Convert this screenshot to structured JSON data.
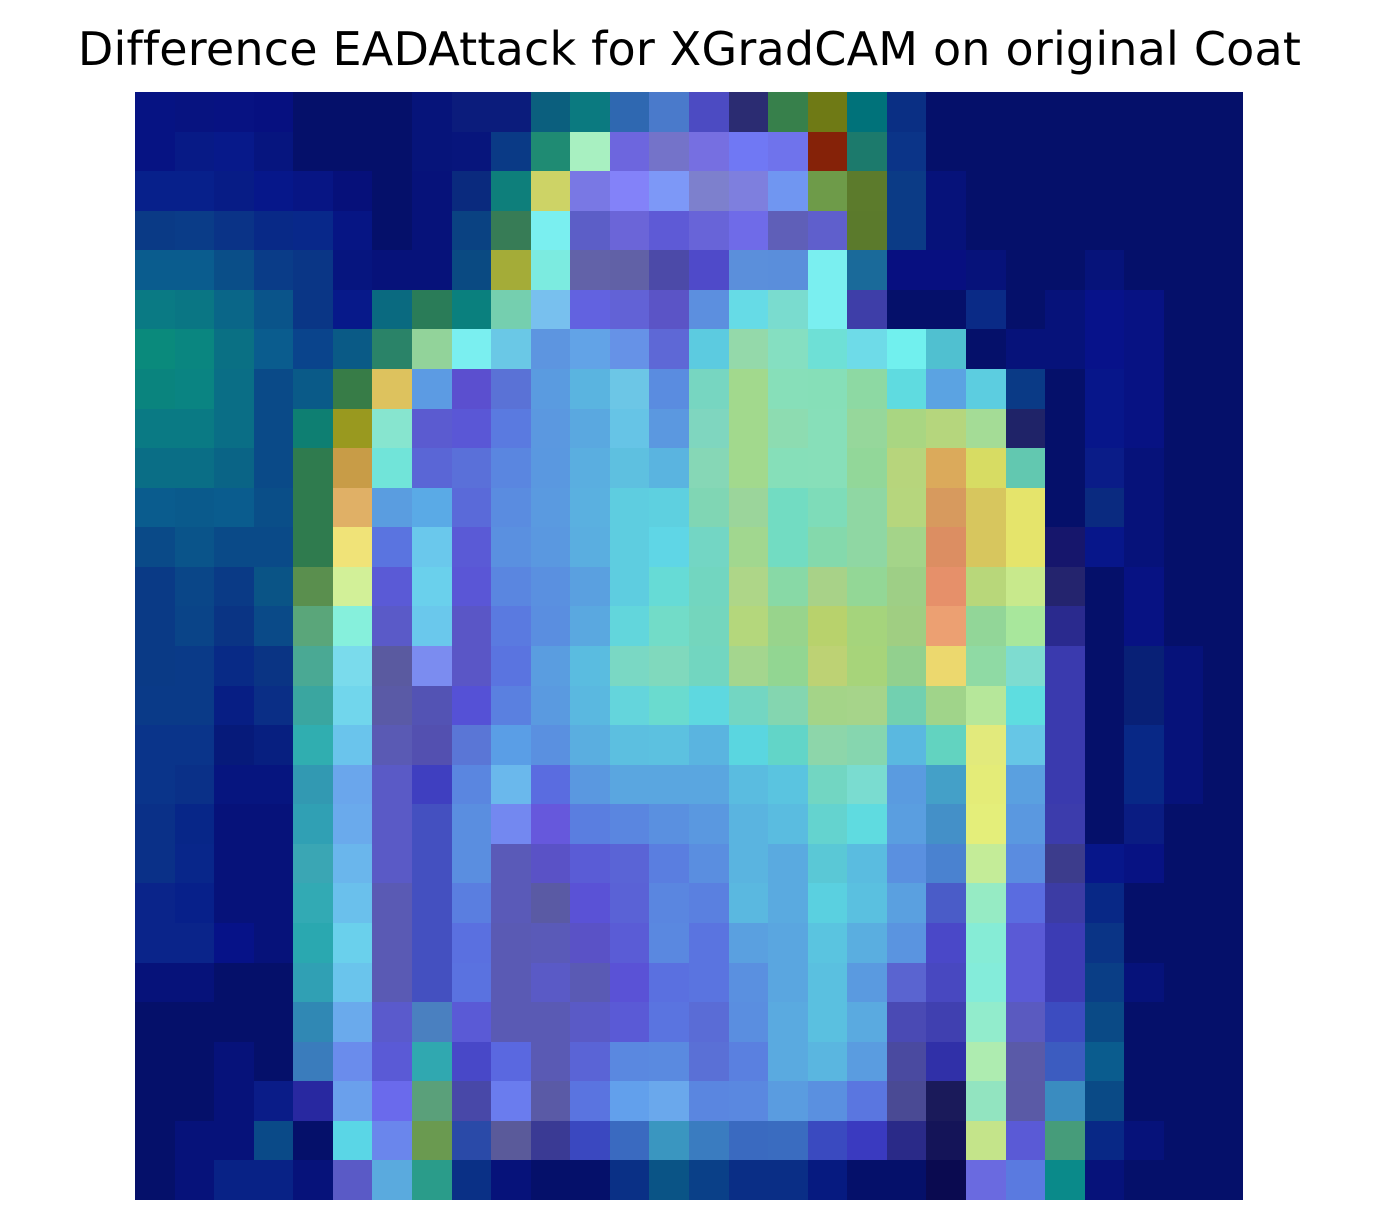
{
  "title": "Difference EADAttack for XGradCAM on original Coat",
  "heatmap": {
    "rows": 28,
    "cols": 28,
    "colormap_stops": [
      "#05106a",
      "#0b2c8a",
      "#0a5c8e",
      "#1f8b8b",
      "#4fb6a7",
      "#7ad2c3",
      "#9bd8a6",
      "#c7e08a",
      "#e8c066",
      "#e39a5a",
      "#8c2a12"
    ],
    "colors": [
      [
        "#061383",
        "#071380",
        "#071282",
        "#061080",
        "#05106a",
        "#05106a",
        "#05106a",
        "#06147a",
        "#0b1c7c",
        "#0b1c7c",
        "#0b5f7e",
        "#0b7a80",
        "#2f68b1",
        "#4a7acb",
        "#4c4bc2",
        "#2b2c72",
        "#37804b",
        "#6f7a15",
        "#00727a",
        "#0a2f84",
        "#05106a",
        "#05106a",
        "#05106a",
        "#05106a",
        "#05106a",
        "#05106a",
        "#05106a",
        "#05106a"
      ],
      [
        "#061383",
        "#071a86",
        "#07198a",
        "#06157f",
        "#05106a",
        "#05106a",
        "#05106a",
        "#06147a",
        "#07157c",
        "#0a3a86",
        "#1f8b73",
        "#a8f0c1",
        "#6d66de",
        "#7473c9",
        "#766fe1",
        "#7078f4",
        "#6f73ec",
        "#852208",
        "#1c7a6c",
        "#0b3488",
        "#05106a",
        "#05106a",
        "#05106a",
        "#05106a",
        "#05106a",
        "#05106a",
        "#05106a",
        "#05106a"
      ],
      [
        "#07208b",
        "#07208b",
        "#071c86",
        "#06178a",
        "#071584",
        "#06107a",
        "#05106a",
        "#06127a",
        "#0a2a7e",
        "#0e7f7b",
        "#cdd366",
        "#7978e4",
        "#8382f9",
        "#7d98f7",
        "#7d80cd",
        "#7e7fde",
        "#7096f1",
        "#6e9b49",
        "#5c7b2c",
        "#0b3b86",
        "#06127a",
        "#05106a",
        "#05106a",
        "#05106a",
        "#05106a",
        "#05106a",
        "#05106a",
        "#05106a"
      ],
      [
        "#0a3a86",
        "#0a3c88",
        "#0a3387",
        "#082987",
        "#08288a",
        "#061584",
        "#05106a",
        "#06127a",
        "#0a4282",
        "#377c56",
        "#7aeff0",
        "#5c5ec7",
        "#6b65d8",
        "#5e5ad6",
        "#6864d8",
        "#6f6be8",
        "#5f5fb8",
        "#5f5fcc",
        "#5b7a2c",
        "#0b3b86",
        "#06127a",
        "#05106a",
        "#05106a",
        "#05106a",
        "#05106a",
        "#05106a",
        "#05106a",
        "#05106a"
      ],
      [
        "#0a5c8e",
        "#0a5c8e",
        "#0a4e88",
        "#0a3c88",
        "#0a3686",
        "#06157f",
        "#06127a",
        "#06127a",
        "#0a4a82",
        "#a4ac38",
        "#7cebe0",
        "#6262a8",
        "#6161a6",
        "#4c4aa8",
        "#4f4ac9",
        "#5b8fdb",
        "#5a8edb",
        "#7aeff0",
        "#1a6a9a",
        "#070f80",
        "#070f80",
        "#06127a",
        "#05106a",
        "#05106a",
        "#06137a",
        "#05106a",
        "#05106a",
        "#05106a"
      ],
      [
        "#0a7a84",
        "#0a7684",
        "#0a6688",
        "#0a548a",
        "#0a3686",
        "#07198a",
        "#0a6a80",
        "#2a7c58",
        "#0a807e",
        "#75cfaf",
        "#78c0ee",
        "#6262e0",
        "#6262d6",
        "#5b54c6",
        "#5c8fdf",
        "#66dbe6",
        "#7adccf",
        "#7aeff0",
        "#3e3ea8",
        "#05106a",
        "#05106a",
        "#0a2a86",
        "#05106a",
        "#06127a",
        "#07128a",
        "#071283",
        "#05106a",
        "#05106a"
      ],
      [
        "#0a8a7c",
        "#0a8680",
        "#0a7084",
        "#0a5c8e",
        "#0a448c",
        "#0a5a86",
        "#2a8368",
        "#92d39a",
        "#7aeff0",
        "#6ac8e6",
        "#5d95e0",
        "#62a3e7",
        "#6692e7",
        "#5e68d6",
        "#5ccbe0",
        "#94d9aa",
        "#85dfc1",
        "#6ee0d6",
        "#6edbe8",
        "#71f0ee",
        "#50c0d0",
        "#05106a",
        "#06127a",
        "#06127a",
        "#07128a",
        "#071283",
        "#05106a",
        "#05106a"
      ],
      [
        "#0a847e",
        "#0a8482",
        "#0a6e86",
        "#0a4a88",
        "#0a5a88",
        "#377c47",
        "#ddc25e",
        "#5c9be3",
        "#5b4fcf",
        "#5a72d6",
        "#5a9be0",
        "#5ab4e0",
        "#6cc6e6",
        "#5a8ce0",
        "#77d6c1",
        "#a2d98d",
        "#87dfb9",
        "#86dfb8",
        "#8dd9a3",
        "#5fdbe0",
        "#5ba3e2",
        "#5ccde0",
        "#0a3a86",
        "#05106a",
        "#07168a",
        "#071283",
        "#05106a",
        "#05106a"
      ],
      [
        "#0a7a84",
        "#0a7a84",
        "#0a6e86",
        "#0a4a88",
        "#0e7f72",
        "#99991f",
        "#87e5cf",
        "#5b5bd0",
        "#5a57d6",
        "#5a7ae0",
        "#5b98e0",
        "#5aa8e0",
        "#66c4e6",
        "#5b98e0",
        "#7fd6bf",
        "#a2d98d",
        "#8ddcb1",
        "#87dfb9",
        "#96d79b",
        "#a9d682",
        "#b5d67d",
        "#a4dc96",
        "#1f2368",
        "#05106a",
        "#07168a",
        "#071283",
        "#05106a",
        "#05106a"
      ],
      [
        "#0a6e86",
        "#0a6e86",
        "#0a6486",
        "#0a4a88",
        "#2f7b4e",
        "#c89c47",
        "#71e4d9",
        "#5a66d6",
        "#5a70d9",
        "#5a86e0",
        "#5a98e0",
        "#5aaee0",
        "#5ec0e0",
        "#5ab4e0",
        "#86d7b6",
        "#a2d98d",
        "#86dfb9",
        "#87dfb9",
        "#92d799",
        "#b7d57c",
        "#dbaa5b",
        "#d7dc63",
        "#62c8b0",
        "#05106a",
        "#0a1c88",
        "#06127a",
        "#05106a",
        "#05106a"
      ],
      [
        "#0a5c8e",
        "#0a5a8c",
        "#0a5c8e",
        "#0a4e88",
        "#2f7b4e",
        "#e0b066",
        "#5a9de0",
        "#5aaae6",
        "#5a6ad9",
        "#5a8ce0",
        "#5a9ae0",
        "#5ab0e0",
        "#5ecde0",
        "#5ed0e0",
        "#80d6b4",
        "#9bd59b",
        "#72dcc2",
        "#7edcb9",
        "#8fd7a3",
        "#b6d67d",
        "#d79a5e",
        "#d7c65e",
        "#e5e46b",
        "#05106a",
        "#0a2a80",
        "#06127a",
        "#05106a",
        "#05106a"
      ],
      [
        "#0a4a88",
        "#0a548a",
        "#0a4a88",
        "#0a4a88",
        "#2f7b4e",
        "#f0e378",
        "#5a74e0",
        "#6ac8ec",
        "#5a5ad6",
        "#5a90e0",
        "#5a98e0",
        "#5aaee0",
        "#5ecde0",
        "#5fd6e6",
        "#73d6c4",
        "#a1d78f",
        "#72dcc2",
        "#84d9ac",
        "#8fd7a3",
        "#a4d489",
        "#dc8e62",
        "#d7c65e",
        "#e5e46b",
        "#16166c",
        "#07168a",
        "#06127a",
        "#05106a",
        "#05106a"
      ],
      [
        "#0a3a86",
        "#0a4688",
        "#0a3a86",
        "#0a5486",
        "#5a8f4e",
        "#d2f098",
        "#5a5ad6",
        "#6ad0ec",
        "#5a56d6",
        "#5a86e0",
        "#5a90e0",
        "#5aa0e0",
        "#5ecde0",
        "#66dbd6",
        "#72d6c0",
        "#aed688",
        "#88d9a6",
        "#a8d288",
        "#93d796",
        "#9ecf86",
        "#e6906a",
        "#b8d77a",
        "#c8e98c",
        "#24246e",
        "#05106a",
        "#071283",
        "#05106a",
        "#05106a"
      ],
      [
        "#0a3a86",
        "#0a4488",
        "#0a3484",
        "#0a4a88",
        "#5aa67a",
        "#86f0dc",
        "#5a5ac8",
        "#6ac8ec",
        "#5a56c6",
        "#5a7ae0",
        "#5a8ee0",
        "#5aa8e0",
        "#62d6dc",
        "#72dcc8",
        "#74d6bd",
        "#b4d77c",
        "#98d48c",
        "#b8d26c",
        "#a5d47c",
        "#a0ce82",
        "#eca072",
        "#92d698",
        "#a8e79c",
        "#2a2a8e",
        "#05106a",
        "#071283",
        "#05106a",
        "#05106a"
      ],
      [
        "#0a3a86",
        "#0a3a88",
        "#082a86",
        "#0a3484",
        "#4aa994",
        "#7adbec",
        "#5a5aa0",
        "#7b8cf0",
        "#5a56c6",
        "#5a74e0",
        "#5a9de0",
        "#5abce0",
        "#7ad8c4",
        "#80d9bd",
        "#72d6c0",
        "#a4d68e",
        "#92d692",
        "#bdd274",
        "#a7d47a",
        "#92d08e",
        "#ecd86e",
        "#8fdaa4",
        "#7edcd0",
        "#3a3aae",
        "#05106a",
        "#082076",
        "#06127a",
        "#05106a"
      ],
      [
        "#0a3a88",
        "#0a3a88",
        "#071e84",
        "#0a2e86",
        "#3aa6a0",
        "#71d6ec",
        "#5a5aa6",
        "#5353b4",
        "#5551d6",
        "#5a80e0",
        "#5a9ae0",
        "#5ab8e0",
        "#64d5dc",
        "#6adbcf",
        "#5ed8e0",
        "#73d6c2",
        "#84d6b0",
        "#a4d488",
        "#a6d48a",
        "#72d0b0",
        "#a0d48a",
        "#b6e79a",
        "#5edde0",
        "#3a3aae",
        "#05106a",
        "#082076",
        "#06127a",
        "#05106a"
      ],
      [
        "#0a348a",
        "#0a348a",
        "#061a7a",
        "#071f80",
        "#30aeb0",
        "#6ac4ec",
        "#5a5ab4",
        "#5350b0",
        "#5a76d6",
        "#5a9ee6",
        "#5a90e0",
        "#5aaee0",
        "#5cbfe0",
        "#5cc1e0",
        "#5ab4e0",
        "#5ad6e0",
        "#62d5c8",
        "#8dd6aa",
        "#86d6af",
        "#5ab8e0",
        "#62d3c0",
        "#e2ea7c",
        "#66c6e6",
        "#3a3aae",
        "#05106a",
        "#082886",
        "#06127a",
        "#05106a"
      ],
      [
        "#0a348a",
        "#0a3088",
        "#06157f",
        "#06157f",
        "#3299b2",
        "#6aa6ec",
        "#5a5ac6",
        "#3f3fc0",
        "#5a86e0",
        "#6ab8ec",
        "#5a6ce0",
        "#5a98e0",
        "#5aa6e0",
        "#5aa6e0",
        "#5aa6e0",
        "#5abce0",
        "#5ac4e0",
        "#72d6c2",
        "#7adcd0",
        "#5a9be0",
        "#44a0c8",
        "#e4ec78",
        "#5aa0e0",
        "#3a3aae",
        "#05106a",
        "#082886",
        "#06127a",
        "#05106a"
      ],
      [
        "#0a3088",
        "#072688",
        "#06127a",
        "#06127a",
        "#30a0b4",
        "#6aaaec",
        "#5a5ac6",
        "#4450c0",
        "#5a8ee0",
        "#7388f0",
        "#6658dc",
        "#5a7ee0",
        "#5a86e0",
        "#5a90e0",
        "#5a98e0",
        "#5ab4e0",
        "#5abce0",
        "#64d3cf",
        "#5fdbe0",
        "#5a9ee0",
        "#4490c8",
        "#e4ee7a",
        "#5a98e0",
        "#3c3cac",
        "#05106a",
        "#0a1c82",
        "#05106a",
        "#05106a"
      ],
      [
        "#0a3088",
        "#08268a",
        "#06127a",
        "#06127a",
        "#3aa6b4",
        "#6ab6ec",
        "#5a5ac6",
        "#4450c0",
        "#5a8ee0",
        "#5a5ab8",
        "#5a52c6",
        "#5a5cd6",
        "#5a64d6",
        "#5a7ee0",
        "#5a8ee0",
        "#5ab4e0",
        "#5aaae0",
        "#5ac8d6",
        "#5abce0",
        "#5a90e0",
        "#4a82d0",
        "#c4ec98",
        "#5a8ce0",
        "#3c3c8c",
        "#07168a",
        "#071283",
        "#05106a",
        "#05106a"
      ],
      [
        "#0a248a",
        "#07208a",
        "#06127a",
        "#06127a",
        "#32aab4",
        "#6ac0ec",
        "#5a5ab4",
        "#4450c0",
        "#5a7ee0",
        "#5a5ab8",
        "#5a5aa4",
        "#5a52d6",
        "#5a62d6",
        "#5a86e0",
        "#5a80e0",
        "#5ab8e0",
        "#5aaae0",
        "#5ad0e0",
        "#5ac0e0",
        "#5aa0e0",
        "#4a5cc8",
        "#96ebc4",
        "#5a6ce0",
        "#3c3ca4",
        "#082886",
        "#05106a",
        "#05106a",
        "#05106a"
      ],
      [
        "#0a248a",
        "#0a248a",
        "#061288",
        "#06127a",
        "#2aa8b0",
        "#6ad0ec",
        "#5a5ab4",
        "#4450c0",
        "#5a70e0",
        "#5a5ab4",
        "#5a5ab8",
        "#5a52c6",
        "#5a5cd6",
        "#5a88e0",
        "#5a74e0",
        "#5aa0e0",
        "#5aa6e0",
        "#5ac4e0",
        "#5aaee0",
        "#5a94e0",
        "#4a48c8",
        "#86ecd6",
        "#5a5ad6",
        "#3c3cb4",
        "#0a3486",
        "#05106a",
        "#05106a",
        "#05106a"
      ],
      [
        "#06127a",
        "#06127a",
        "#05106a",
        "#05106a",
        "#30a0b4",
        "#6ac4ec",
        "#5a5ab4",
        "#4450c0",
        "#5a72e0",
        "#5a5ab4",
        "#5a5ac6",
        "#5a5ab4",
        "#5a52d6",
        "#5a70e0",
        "#5a74e0",
        "#5a90e0",
        "#5aa6e0",
        "#5ac0e0",
        "#5a9ae0",
        "#5a64d0",
        "#4848c0",
        "#84ecda",
        "#5a5ad6",
        "#3c3cb4",
        "#0a3e86",
        "#06127a",
        "#05106a",
        "#05106a"
      ],
      [
        "#05106a",
        "#05106a",
        "#05106a",
        "#05106a",
        "#3088b4",
        "#6aaaec",
        "#5a5acc",
        "#4a80c0",
        "#5a5ad6",
        "#5a5ab4",
        "#5a5ab4",
        "#5a5ac6",
        "#5a5ad6",
        "#5a74e0",
        "#5a6cd6",
        "#5a8ee0",
        "#5aaae0",
        "#5ac0e0",
        "#5aaae0",
        "#4a4ab4",
        "#4040b0",
        "#92eccc",
        "#5a5ac0",
        "#3c4cc0",
        "#0a4a86",
        "#05106a",
        "#05106a",
        "#05106a"
      ],
      [
        "#05106a",
        "#05106a",
        "#06127a",
        "#05106a",
        "#3a7cbc",
        "#6a8cec",
        "#5a5ad6",
        "#30a8b0",
        "#4848c8",
        "#5a68e0",
        "#5a5ab4",
        "#5a64d6",
        "#5a88e0",
        "#5a8ae0",
        "#5a70d6",
        "#5a80e0",
        "#5aaae0",
        "#5ab6e0",
        "#5a9ce0",
        "#4a4aa0",
        "#3030a8",
        "#aeecb0",
        "#5a5aa8",
        "#3c5cc0",
        "#0a5c8e",
        "#05106a",
        "#05106a",
        "#05106a"
      ],
      [
        "#05106a",
        "#05106a",
        "#06127a",
        "#0a1c88",
        "#2828a0",
        "#6aa0ec",
        "#6a6aec",
        "#5aa07a",
        "#4848a8",
        "#6a7cee",
        "#5a5aa6",
        "#5a74e0",
        "#62a0ec",
        "#6aa8ec",
        "#5a86e0",
        "#5a88e0",
        "#5a9ce0",
        "#5a90e0",
        "#5a76e0",
        "#4a4a94",
        "#1a1a5a",
        "#92e4c0",
        "#5a5aa6",
        "#3a8cc0",
        "#0a4a86",
        "#05106a",
        "#05106a",
        "#05106a"
      ],
      [
        "#05106a",
        "#06127a",
        "#06127a",
        "#0a4a88",
        "#05106a",
        "#5ad6e6",
        "#6a86ec",
        "#6a9a50",
        "#2a4aa8",
        "#5a5a9a",
        "#3a3a94",
        "#3a48c0",
        "#3a6ac0",
        "#3a96c0",
        "#3a7cc0",
        "#3a6ac0",
        "#3a6cc0",
        "#3a4ac0",
        "#3a3ac0",
        "#2a2a88",
        "#141458",
        "#c4e48a",
        "#5a5ad6",
        "#469c7a",
        "#082886",
        "#06127a",
        "#05106a",
        "#05106a"
      ],
      [
        "#05106a",
        "#06127a",
        "#082286",
        "#082286",
        "#06127a",
        "#5a5ac6",
        "#5aaade",
        "#2a9c8a",
        "#0a3086",
        "#06127a",
        "#05106a",
        "#05106a",
        "#0a3086",
        "#0a5486",
        "#0a4088",
        "#0a2e86",
        "#0a2e86",
        "#061a80",
        "#05106a",
        "#05106a",
        "#0a0a50",
        "#6a6ae0",
        "#5a7ae0",
        "#0a8a8a",
        "#06127a",
        "#05106a",
        "#05106a",
        "#05106a"
      ]
    ]
  }
}
